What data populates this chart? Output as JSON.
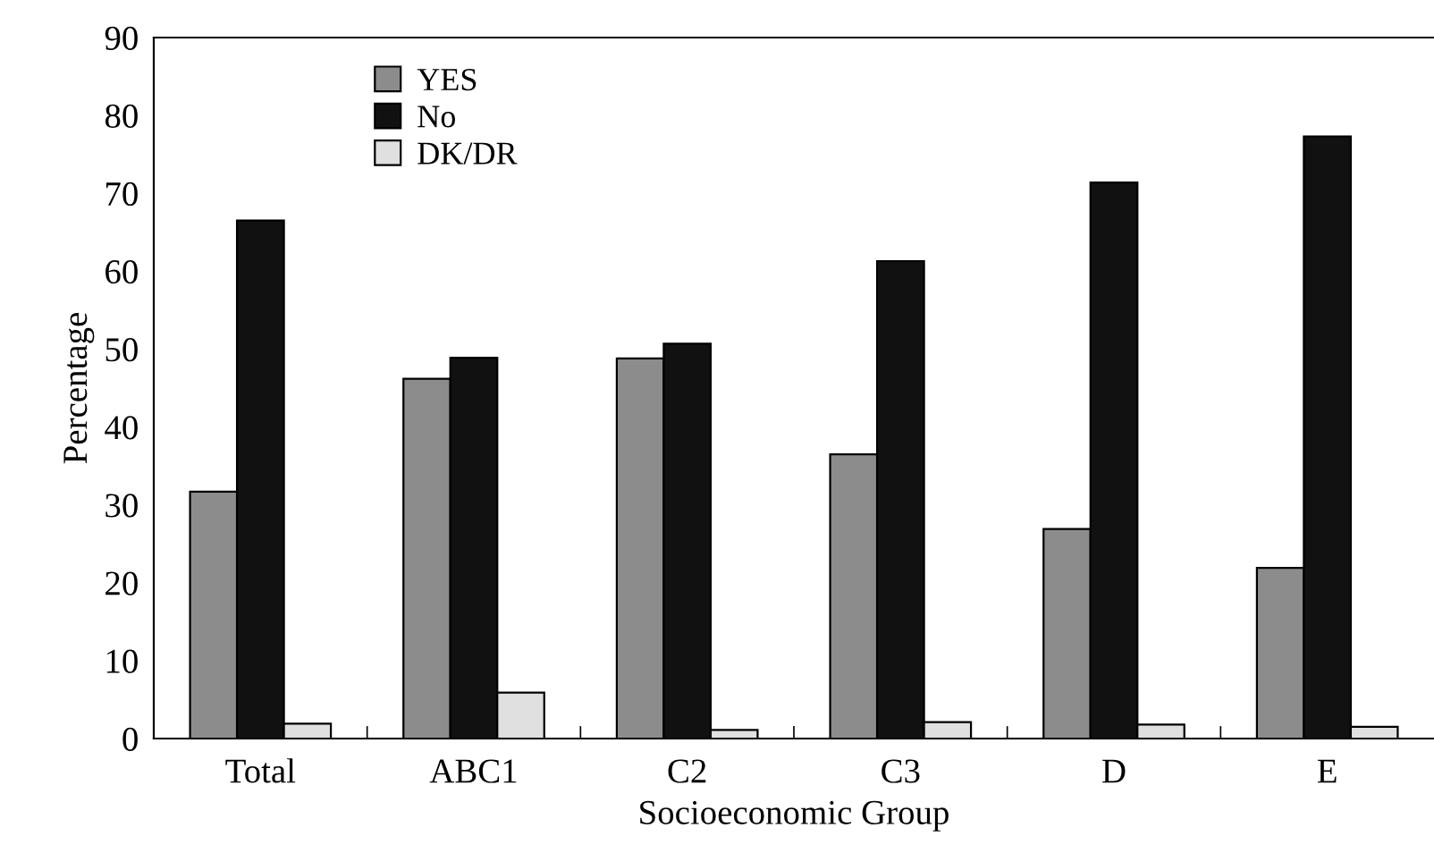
{
  "chart_data": {
    "type": "bar",
    "xlabel": "Socioeconomic Group",
    "ylabel": "Percentage",
    "categories": [
      "Total",
      "ABC1",
      "C2",
      "C3",
      "D",
      "E"
    ],
    "series": [
      {
        "name": "YES",
        "color": "#8c8c8c",
        "values": [
          31.7,
          46.2,
          48.8,
          36.5,
          26.9,
          21.9
        ]
      },
      {
        "name": "No",
        "color": "#111111",
        "values": [
          66.5,
          48.9,
          50.7,
          61.3,
          71.4,
          77.3
        ]
      },
      {
        "name": "DK/DR",
        "color": "#e0e0e0",
        "values": [
          1.9,
          5.9,
          1.1,
          2.1,
          1.8,
          1.5
        ]
      }
    ],
    "ylim": [
      0,
      90
    ],
    "yticks": [
      0,
      10,
      20,
      30,
      40,
      50,
      60,
      70,
      80,
      90
    ],
    "grid": false,
    "legend": "top left"
  }
}
